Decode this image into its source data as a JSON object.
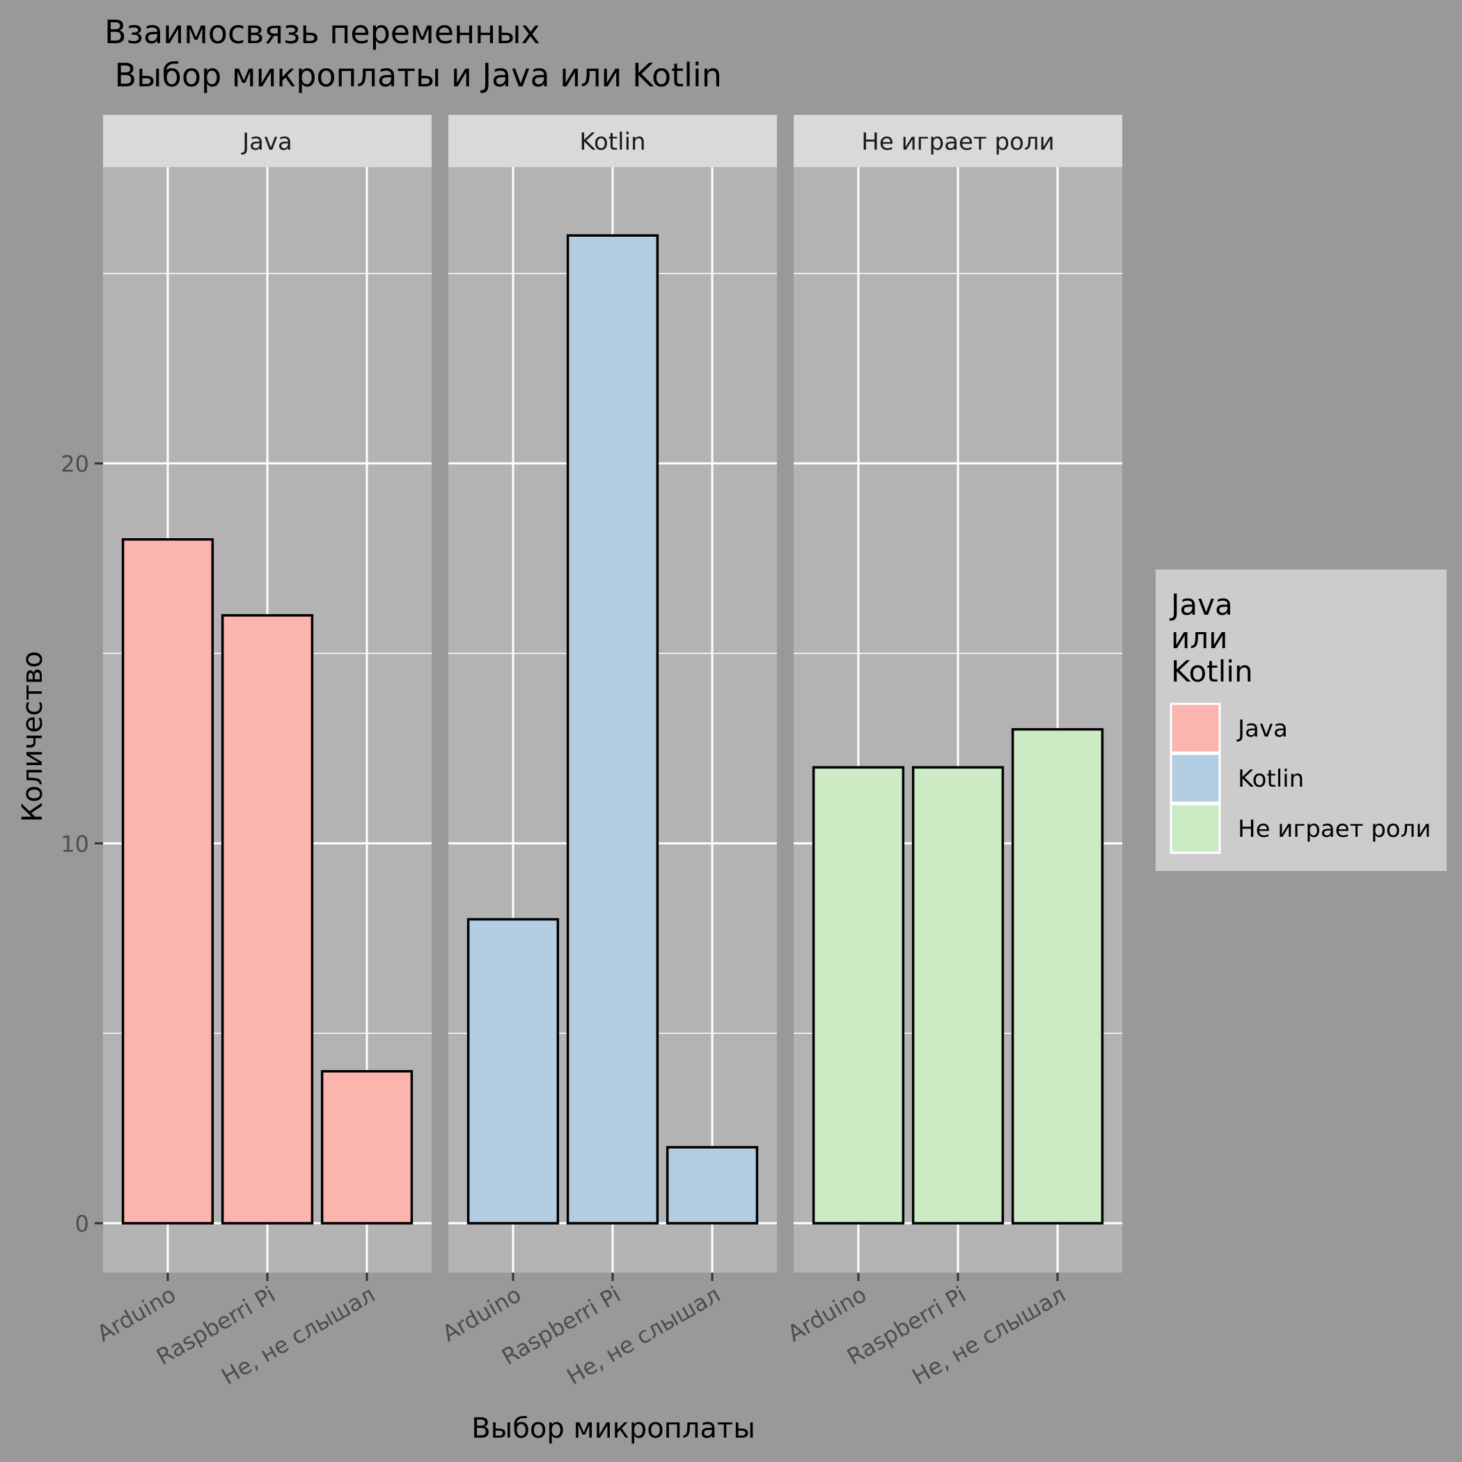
{
  "chart_data": {
    "type": "bar",
    "title_line1": "Взаимосвязь переменных",
    "title_line2": " Выбор микроплаты и Java или Kotlin",
    "xlabel": "Выбор микроплаты",
    "ylabel": "Количество",
    "categories": [
      "Arduino",
      "Raspberri Pi",
      "Не, не слышал"
    ],
    "ylim": [
      -1.3,
      27.8
    ],
    "y_ticks": [
      0,
      10,
      20
    ],
    "grid": true,
    "legend_position": "right",
    "legend_title": [
      "Java",
      "или",
      "Kotlin"
    ],
    "panels": [
      {
        "name": "Java",
        "color": "#FBB4AE",
        "values": [
          18,
          16,
          4
        ]
      },
      {
        "name": "Kotlin",
        "color": "#B3CDE3",
        "values": [
          8,
          26,
          2
        ]
      },
      {
        "name": "Не играет роли",
        "color": "#CCEBC5",
        "values": [
          12,
          12,
          13
        ]
      }
    ]
  }
}
